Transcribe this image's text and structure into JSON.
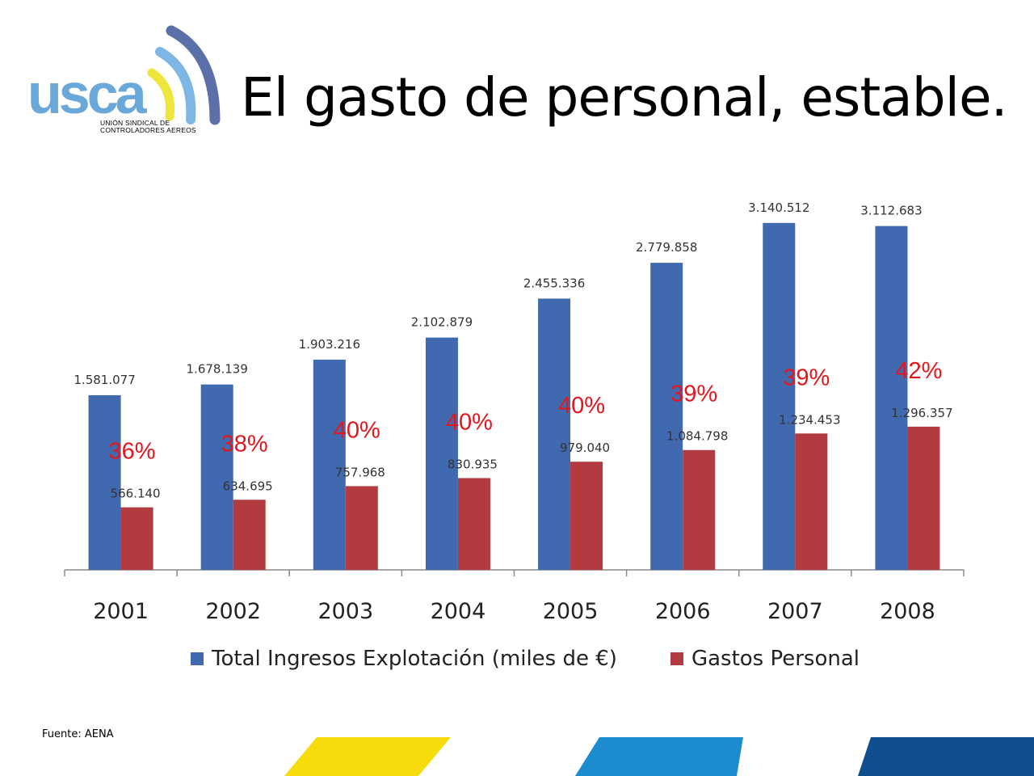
{
  "logo": {
    "text": "usca",
    "tagline_line1": "UNIÓN SINDICAL DE",
    "tagline_line2": "CONTROLADORES AEREOS"
  },
  "title": "El gasto de personal, estable.",
  "source": "Fuente: AENA",
  "colors": {
    "ingresos": "#4169B0",
    "gastos": "#B13B3E",
    "percent": "#E3161C",
    "stripe_yellow": "#F5DC0A",
    "stripe_blue": "#1C8BD0",
    "stripe_navy": "#0F4F8F"
  },
  "chart_data": {
    "type": "bar",
    "categories": [
      "2001",
      "2002",
      "2003",
      "2004",
      "2005",
      "2006",
      "2007",
      "2008"
    ],
    "series": [
      {
        "name": "Total Ingresos Explotación (miles de €)",
        "values": [
          1581077,
          1678139,
          1903216,
          2102879,
          2455336,
          2779858,
          3140512,
          3112683
        ],
        "labels": [
          "1.581.077",
          "1.678.139",
          "1.903.216",
          "2.102.879",
          "2.455.336",
          "2.779.858",
          "3.140.512",
          "3.112.683"
        ]
      },
      {
        "name": "Gastos Personal",
        "values": [
          566140,
          634695,
          757968,
          830935,
          979040,
          1084798,
          1234453,
          1296357
        ],
        "labels": [
          "566.140",
          "634.695",
          "757.968",
          "830.935",
          "979.040",
          "1.084.798",
          "1.234.453",
          "1.296.357"
        ]
      }
    ],
    "annotations": [
      "36%",
      "38%",
      "40%",
      "40%",
      "40%",
      "39%",
      "39%",
      "42%"
    ],
    "ylim": [
      0,
      3600000
    ],
    "grid": false,
    "legend": "bottom"
  }
}
